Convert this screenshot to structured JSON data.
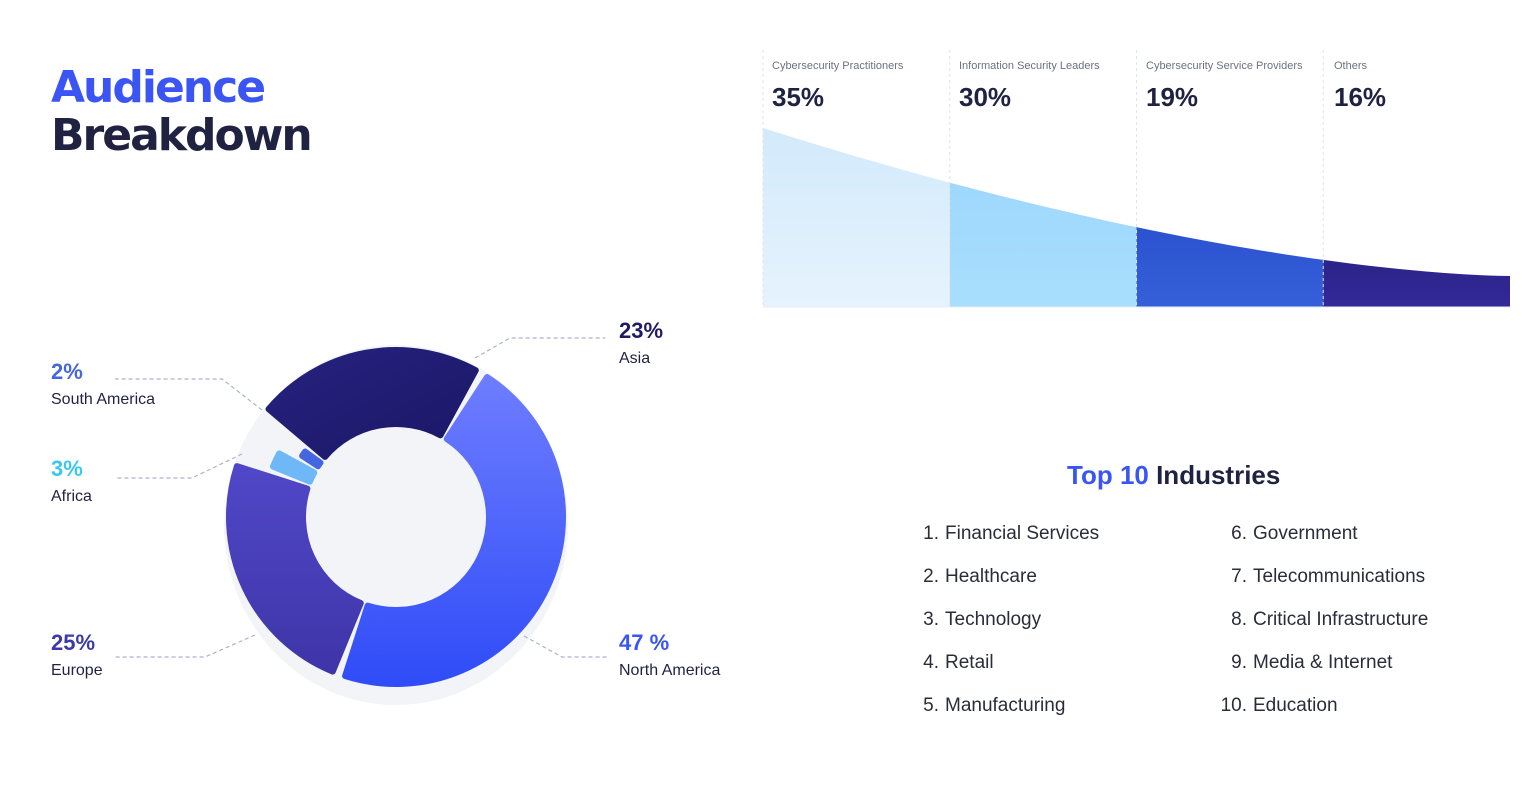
{
  "header": {
    "title_line1": "Audience",
    "title_line2": "Breakdown"
  },
  "chart_data": [
    {
      "type": "pie",
      "variant": "donut",
      "series": [
        {
          "name": "North America",
          "label": "47 %",
          "value": 47,
          "color": "#3d56f5"
        },
        {
          "name": "Europe",
          "label": "25%",
          "value": 25,
          "color": "#4a41c2"
        },
        {
          "name": "Africa",
          "label": "3%",
          "value": 3,
          "color": "#6fb8f7"
        },
        {
          "name": "South America",
          "label": "2%",
          "value": 2,
          "color": "#4566e0"
        },
        {
          "name": "Asia",
          "label": "23%",
          "value": 23,
          "color": "#1e1b73"
        }
      ]
    },
    {
      "type": "area",
      "categories": [
        "Cybersecurity Practitioners",
        "Information Security Leaders",
        "Cybersecurity Service Providers",
        "Others"
      ],
      "values": [
        35,
        30,
        19,
        16
      ],
      "labels": [
        "35%",
        "30%",
        "19%",
        "16%"
      ],
      "colors": [
        "#d6ecfb",
        "#9fdafd",
        "#2f5bd6",
        "#2e2791"
      ]
    }
  ],
  "industries": {
    "title_highlight": "Top 10",
    "title_rest": " Industries",
    "items": [
      {
        "num": "1.",
        "name": "Financial Services"
      },
      {
        "num": "2.",
        "name": "Healthcare"
      },
      {
        "num": "3.",
        "name": "Technology"
      },
      {
        "num": "4.",
        "name": "Retail"
      },
      {
        "num": "5.",
        "name": "Manufacturing"
      },
      {
        "num": "6.",
        "name": "Government"
      },
      {
        "num": "7.",
        "name": "Telecommunications"
      },
      {
        "num": "8.",
        "name": "Critical Infrastructure"
      },
      {
        "num": "9.",
        "name": "Media & Internet"
      },
      {
        "num": "10.",
        "name": "Education"
      }
    ]
  },
  "colors": {
    "accent": "#3a55f4",
    "dark": "#1f2241",
    "africa": "#38c8f0",
    "south_america": "#4566e0",
    "europe": "#3b3aa8"
  }
}
